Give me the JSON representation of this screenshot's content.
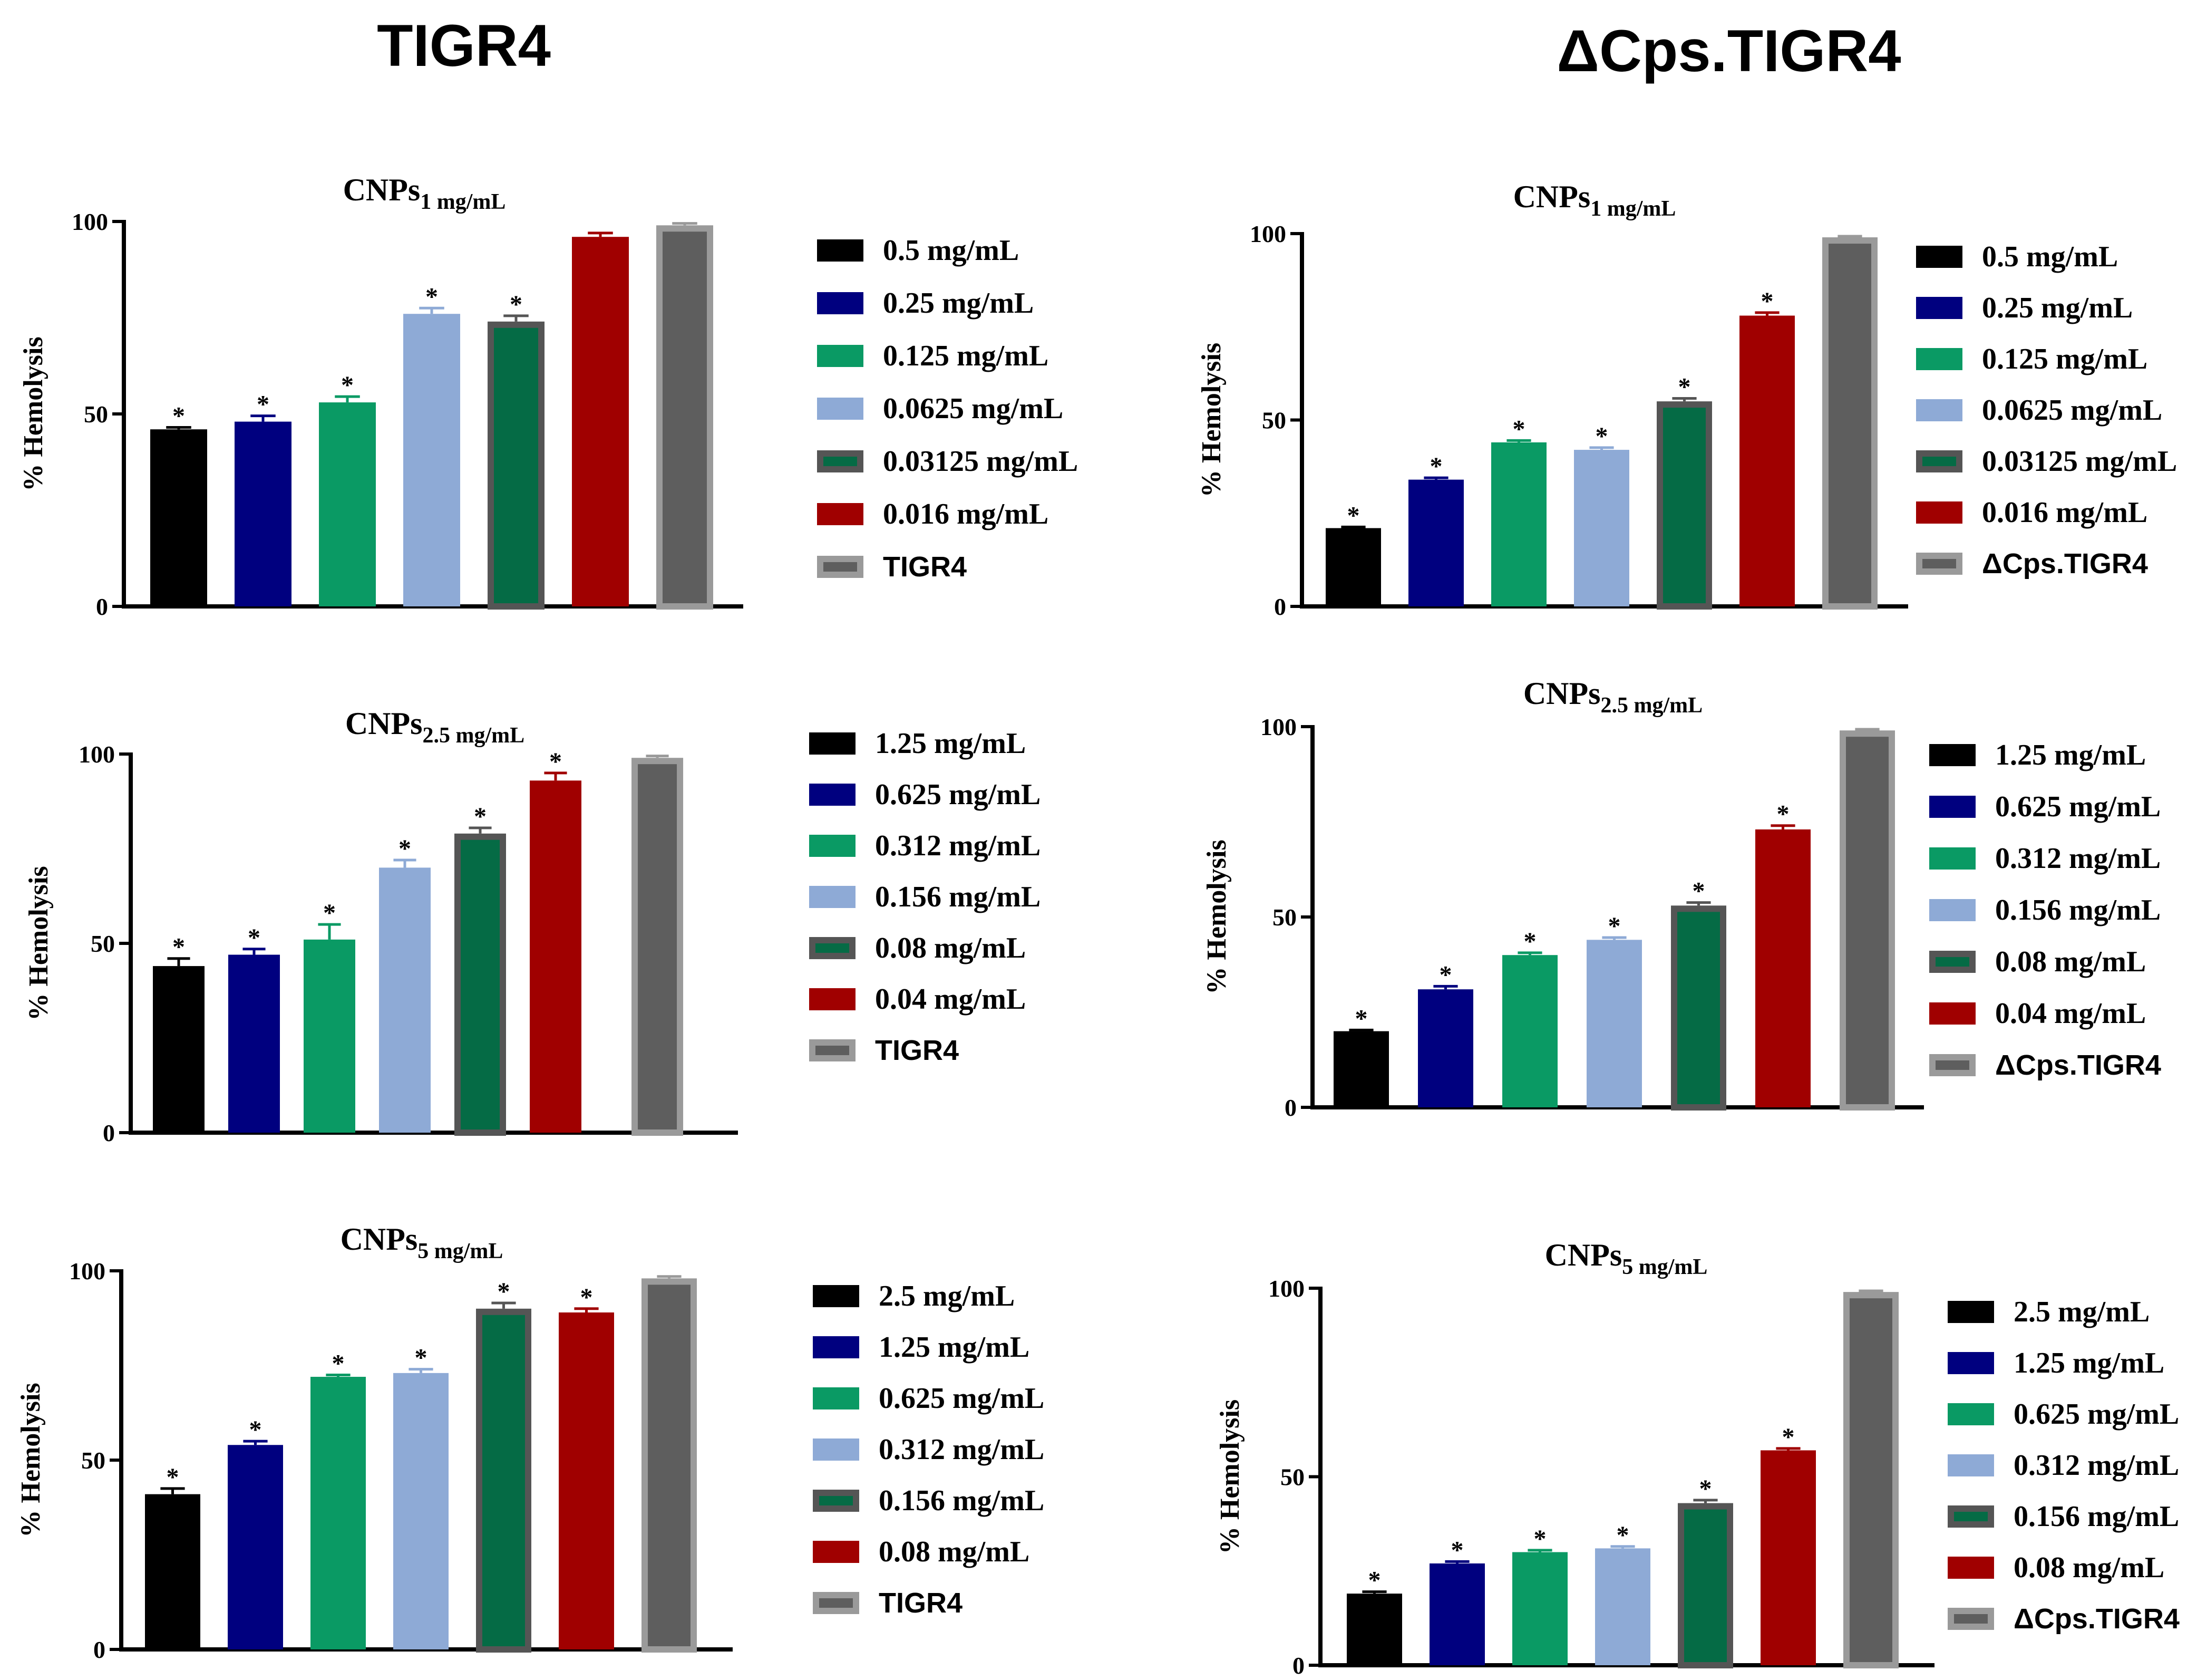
{
  "columns": [
    {
      "title": "TIGR4"
    },
    {
      "title": "ΔCps.TIGR4"
    }
  ],
  "colors": {
    "black": "#000000",
    "navy": "#00007f",
    "green": "#0a9a64",
    "light_blue": "#8eaad6",
    "dark_green": "#056b45",
    "dark_green_border": "#555555",
    "red": "#a00000",
    "gray": "#5e5e5e",
    "gray_border": "#9a9a9a"
  },
  "chart_data": [
    {
      "type": "bar",
      "title_main": "CNPs",
      "title_sub": "1 mg/mL",
      "ylabel": "% Hemolysis",
      "ylim": [
        0,
        100
      ],
      "yticks": [
        "0",
        "50",
        "100"
      ],
      "categories": [
        "0.5 mg/mL",
        "0.25 mg/mL",
        "0.125 mg/mL",
        "0.0625 mg/mL",
        "0.03125 mg/mL",
        "0.016 mg/mL",
        "TIGR4"
      ],
      "values": [
        46,
        48,
        53,
        76,
        74,
        96,
        99
      ],
      "errors": [
        0.5,
        1.5,
        1.5,
        1.5,
        1.5,
        1,
        0.5
      ],
      "significant": [
        true,
        true,
        true,
        true,
        true,
        false,
        false
      ],
      "star": "*"
    },
    {
      "type": "bar",
      "title_main": "CNPs",
      "title_sub": "1 mg/mL",
      "ylabel": "% Hemolysis",
      "ylim": [
        0,
        100
      ],
      "yticks": [
        "0",
        "50",
        "100"
      ],
      "categories": [
        "0.5 mg/mL",
        "0.25 mg/mL",
        "0.125 mg/mL",
        "0.0625 mg/mL",
        "0.03125 mg/mL",
        "0.016 mg/mL",
        "ΔCps.TIGR4"
      ],
      "values": [
        21,
        34,
        44,
        42,
        55,
        78,
        99
      ],
      "errors": [
        0.3,
        0.5,
        0.5,
        0.6,
        0.8,
        0.8,
        0.3
      ],
      "significant": [
        true,
        true,
        true,
        true,
        true,
        true,
        false
      ],
      "star": "*"
    },
    {
      "type": "bar",
      "title_main": "CNPs",
      "title_sub": "2.5 mg/mL",
      "ylabel": "% Hemolysis",
      "ylim": [
        0,
        100
      ],
      "yticks": [
        "0",
        "50",
        "100"
      ],
      "categories": [
        "1.25 mg/mL",
        "0.625 mg/mL",
        "0.312 mg/mL",
        "0.156 mg/mL",
        "0.08 mg/mL",
        "0.04 mg/mL",
        "TIGR4"
      ],
      "values": [
        44,
        47,
        51,
        70,
        79,
        93,
        99
      ],
      "errors": [
        2,
        1.5,
        4,
        2,
        1.5,
        2,
        0.5
      ],
      "significant": [
        true,
        true,
        true,
        true,
        true,
        true,
        false
      ],
      "star": "*"
    },
    {
      "type": "bar",
      "title_main": "CNPs",
      "title_sub": "2.5 mg/mL",
      "ylabel": "% Hemolysis",
      "ylim": [
        0,
        100
      ],
      "yticks": [
        "0",
        "50",
        "100"
      ],
      "categories": [
        "1.25 mg/mL",
        "0.625 mg/mL",
        "0.312 mg/mL",
        "0.156 mg/mL",
        "0.08 mg/mL",
        "0.04 mg/mL",
        "ΔCps.TIGR4"
      ],
      "values": [
        20,
        31,
        40,
        44,
        53,
        73,
        99
      ],
      "errors": [
        0.3,
        0.8,
        0.6,
        0.6,
        0.8,
        1,
        0.3
      ],
      "significant": [
        true,
        true,
        true,
        true,
        true,
        true,
        false
      ],
      "star": "*"
    },
    {
      "type": "bar",
      "title_main": "CNPs",
      "title_sub": "5 mg/mL",
      "ylabel": "% Hemolysis",
      "ylim": [
        0,
        100
      ],
      "yticks": [
        "0",
        "50",
        "100"
      ],
      "categories": [
        "2.5 mg/mL",
        "1.25 mg/mL",
        "0.625 mg/mL",
        "0.312 mg/mL",
        "0.156 mg/mL",
        "0.08 mg/mL",
        "TIGR4"
      ],
      "values": [
        41,
        54,
        72,
        73,
        90,
        89,
        98
      ],
      "errors": [
        1.5,
        1,
        0.5,
        1,
        1.5,
        1,
        0.5
      ],
      "significant": [
        true,
        true,
        true,
        true,
        true,
        true,
        false
      ],
      "star": "*"
    },
    {
      "type": "bar",
      "title_main": "CNPs",
      "title_sub": "5 mg/mL",
      "ylabel": "% Hemolysis",
      "ylim": [
        0,
        100
      ],
      "yticks": [
        "0",
        "50",
        "100"
      ],
      "categories": [
        "2.5 mg/mL",
        "1.25 mg/mL",
        "0.625 mg/mL",
        "0.312 mg/mL",
        "0.156 mg/mL",
        "0.08 mg/mL",
        "ΔCps.TIGR4"
      ],
      "values": [
        19,
        27,
        30,
        31,
        43,
        57,
        99
      ],
      "errors": [
        0.5,
        0.5,
        0.5,
        0.5,
        0.8,
        0.5,
        0.3
      ],
      "significant": [
        true,
        true,
        true,
        true,
        true,
        true,
        false
      ],
      "star": "*"
    }
  ]
}
